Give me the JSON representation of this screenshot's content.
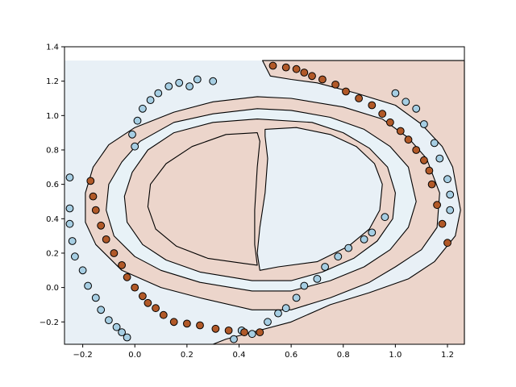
{
  "chart_data": {
    "type": "scatter",
    "title": "",
    "xlabel": "",
    "ylabel": "",
    "xlim": [
      -0.27,
      1.265
    ],
    "ylim": [
      -0.33,
      1.4
    ],
    "region_ylim": [
      -0.33,
      1.32
    ],
    "grid": false,
    "legend": "none",
    "x_ticks": [
      -0.2,
      0.0,
      0.2,
      0.4,
      0.6,
      0.8,
      1.0,
      1.2
    ],
    "y_ticks": [
      -0.2,
      0.0,
      0.2,
      0.4,
      0.6,
      0.8,
      1.0,
      1.2,
      1.4
    ],
    "x_tick_labels": [
      "−0.2",
      "0.0",
      "0.2",
      "0.4",
      "0.6",
      "0.8",
      "1.0",
      "1.2"
    ],
    "y_tick_labels": [
      "−0.2",
      "0.0",
      "0.2",
      "0.4",
      "0.6",
      "0.8",
      "1.0",
      "1.2",
      "1.4"
    ],
    "colors": {
      "class0_point": "#a6cee3",
      "class1_point": "#b15928",
      "class0_region": "#e8f0f6",
      "class1_region": "#ecd5cb",
      "band_region": "#e8f2f7",
      "boundary": "#000000"
    },
    "regions": [
      {
        "class": 1,
        "name": "right-outer",
        "points": [
          [
            0.49,
            1.32
          ],
          [
            0.52,
            1.23
          ],
          [
            0.6,
            1.21
          ],
          [
            0.7,
            1.19
          ],
          [
            0.85,
            1.13
          ],
          [
            1.0,
            1.06
          ],
          [
            1.1,
            0.95
          ],
          [
            1.18,
            0.82
          ],
          [
            1.22,
            0.7
          ],
          [
            1.25,
            0.45
          ],
          [
            1.23,
            0.3
          ],
          [
            1.15,
            0.15
          ],
          [
            1.05,
            0.05
          ],
          [
            0.9,
            -0.03
          ],
          [
            0.75,
            -0.1
          ],
          [
            0.6,
            -0.2
          ],
          [
            0.45,
            -0.26
          ],
          [
            0.35,
            -0.3
          ],
          [
            0.3,
            -0.33
          ],
          [
            1.265,
            -0.33
          ],
          [
            1.265,
            1.32
          ]
        ]
      },
      {
        "class": 1,
        "name": "outer-ring",
        "points": [
          [
            0.47,
            1.11
          ],
          [
            0.3,
            1.08
          ],
          [
            0.15,
            1.02
          ],
          [
            0.0,
            0.93
          ],
          [
            -0.1,
            0.83
          ],
          [
            -0.16,
            0.7
          ],
          [
            -0.19,
            0.55
          ],
          [
            -0.19,
            0.38
          ],
          [
            -0.15,
            0.25
          ],
          [
            -0.05,
            0.1
          ],
          [
            0.1,
            0.0
          ],
          [
            0.25,
            -0.06
          ],
          [
            0.45,
            -0.13
          ],
          [
            0.6,
            -0.13
          ],
          [
            0.75,
            -0.06
          ],
          [
            0.9,
            0.03
          ],
          [
            1.0,
            0.12
          ],
          [
            1.1,
            0.22
          ],
          [
            1.16,
            0.35
          ],
          [
            1.17,
            0.55
          ],
          [
            1.12,
            0.75
          ],
          [
            1.05,
            0.87
          ],
          [
            0.95,
            0.98
          ],
          [
            0.8,
            1.05
          ],
          [
            0.6,
            1.1
          ]
        ]
      },
      {
        "class": 0,
        "name": "middle-ring",
        "points": [
          [
            0.47,
            1.04
          ],
          [
            0.3,
            1.01
          ],
          [
            0.15,
            0.96
          ],
          [
            0.02,
            0.85
          ],
          [
            -0.05,
            0.73
          ],
          [
            -0.1,
            0.6
          ],
          [
            -0.11,
            0.45
          ],
          [
            -0.08,
            0.3
          ],
          [
            0.0,
            0.18
          ],
          [
            0.1,
            0.1
          ],
          [
            0.25,
            0.03
          ],
          [
            0.45,
            -0.02
          ],
          [
            0.6,
            -0.02
          ],
          [
            0.75,
            0.04
          ],
          [
            0.88,
            0.12
          ],
          [
            0.98,
            0.22
          ],
          [
            1.05,
            0.35
          ],
          [
            1.08,
            0.5
          ],
          [
            1.05,
            0.7
          ],
          [
            0.98,
            0.82
          ],
          [
            0.88,
            0.92
          ],
          [
            0.75,
            0.99
          ],
          [
            0.6,
            1.03
          ]
        ]
      },
      {
        "class": 1,
        "name": "inner-ring",
        "points": [
          [
            0.47,
            0.98
          ],
          [
            0.3,
            0.96
          ],
          [
            0.15,
            0.9
          ],
          [
            0.05,
            0.8
          ],
          [
            -0.01,
            0.67
          ],
          [
            -0.04,
            0.53
          ],
          [
            -0.03,
            0.38
          ],
          [
            0.03,
            0.25
          ],
          [
            0.12,
            0.16
          ],
          [
            0.25,
            0.09
          ],
          [
            0.45,
            0.04
          ],
          [
            0.6,
            0.04
          ],
          [
            0.72,
            0.09
          ],
          [
            0.84,
            0.17
          ],
          [
            0.93,
            0.27
          ],
          [
            0.99,
            0.4
          ],
          [
            1.0,
            0.55
          ],
          [
            0.97,
            0.7
          ],
          [
            0.9,
            0.81
          ],
          [
            0.8,
            0.9
          ],
          [
            0.68,
            0.96
          ]
        ]
      },
      {
        "class": 0,
        "name": "core-right",
        "points": [
          [
            0.5,
            0.92
          ],
          [
            0.62,
            0.93
          ],
          [
            0.75,
            0.89
          ],
          [
            0.85,
            0.82
          ],
          [
            0.92,
            0.72
          ],
          [
            0.95,
            0.6
          ],
          [
            0.94,
            0.45
          ],
          [
            0.9,
            0.34
          ],
          [
            0.82,
            0.24
          ],
          [
            0.7,
            0.15
          ],
          [
            0.55,
            0.12
          ],
          [
            0.48,
            0.1
          ],
          [
            0.47,
            0.2
          ],
          [
            0.48,
            0.35
          ],
          [
            0.5,
            0.55
          ],
          [
            0.51,
            0.75
          ],
          [
            0.5,
            0.88
          ]
        ]
      },
      {
        "class": 1,
        "name": "core-left",
        "points": [
          [
            0.47,
            0.9
          ],
          [
            0.35,
            0.89
          ],
          [
            0.22,
            0.82
          ],
          [
            0.12,
            0.72
          ],
          [
            0.06,
            0.6
          ],
          [
            0.05,
            0.47
          ],
          [
            0.08,
            0.34
          ],
          [
            0.16,
            0.24
          ],
          [
            0.28,
            0.17
          ],
          [
            0.42,
            0.14
          ],
          [
            0.47,
            0.13
          ],
          [
            0.46,
            0.25
          ],
          [
            0.46,
            0.45
          ],
          [
            0.47,
            0.7
          ],
          [
            0.48,
            0.85
          ]
        ]
      }
    ],
    "series": [
      {
        "class": 0,
        "x": [
          -0.25,
          -0.25,
          -0.25,
          -0.24,
          -0.23,
          -0.2,
          -0.18,
          -0.15,
          -0.13,
          -0.1,
          -0.07,
          -0.05,
          -0.03,
          -0.01,
          0.0,
          0.01,
          0.03,
          0.06,
          0.09,
          0.13,
          0.17,
          0.21,
          0.24,
          0.3,
          0.38,
          0.41,
          0.45,
          0.51,
          0.55,
          0.58,
          0.62,
          0.65,
          0.7,
          0.73,
          0.78,
          0.82,
          0.88,
          0.91,
          0.96,
          1.0,
          1.04,
          1.08,
          1.11,
          1.15,
          1.17,
          1.2,
          1.21,
          1.21
        ],
        "y": [
          0.64,
          0.46,
          0.37,
          0.27,
          0.18,
          0.1,
          0.01,
          -0.06,
          -0.13,
          -0.19,
          -0.23,
          -0.26,
          -0.29,
          0.89,
          0.82,
          0.97,
          1.04,
          1.09,
          1.13,
          1.17,
          1.19,
          1.17,
          1.21,
          1.2,
          -0.3,
          -0.25,
          -0.27,
          -0.2,
          -0.15,
          -0.12,
          -0.06,
          0.01,
          0.05,
          0.12,
          0.18,
          0.23,
          0.28,
          0.32,
          0.41,
          1.13,
          1.08,
          1.04,
          0.95,
          0.84,
          0.75,
          0.63,
          0.54,
          0.45
        ]
      },
      {
        "class": 1,
        "x": [
          -0.17,
          -0.16,
          -0.15,
          -0.13,
          -0.11,
          -0.08,
          -0.05,
          -0.03,
          0.0,
          0.03,
          0.05,
          0.08,
          0.11,
          0.15,
          0.2,
          0.25,
          0.31,
          0.36,
          0.42,
          0.48,
          0.53,
          0.58,
          0.62,
          0.65,
          0.68,
          0.72,
          0.77,
          0.81,
          0.86,
          0.91,
          0.95,
          0.98,
          1.02,
          1.05,
          1.08,
          1.11,
          1.13,
          1.14,
          1.16,
          1.18,
          1.2
        ],
        "y": [
          0.62,
          0.53,
          0.45,
          0.36,
          0.28,
          0.2,
          0.13,
          0.06,
          0.0,
          -0.05,
          -0.09,
          -0.12,
          -0.16,
          -0.2,
          -0.21,
          -0.22,
          -0.24,
          -0.25,
          -0.26,
          -0.26,
          1.29,
          1.28,
          1.27,
          1.25,
          1.23,
          1.21,
          1.18,
          1.14,
          1.1,
          1.06,
          1.01,
          0.96,
          0.91,
          0.86,
          0.8,
          0.74,
          0.68,
          0.6,
          0.48,
          0.37,
          0.26
        ]
      }
    ]
  }
}
